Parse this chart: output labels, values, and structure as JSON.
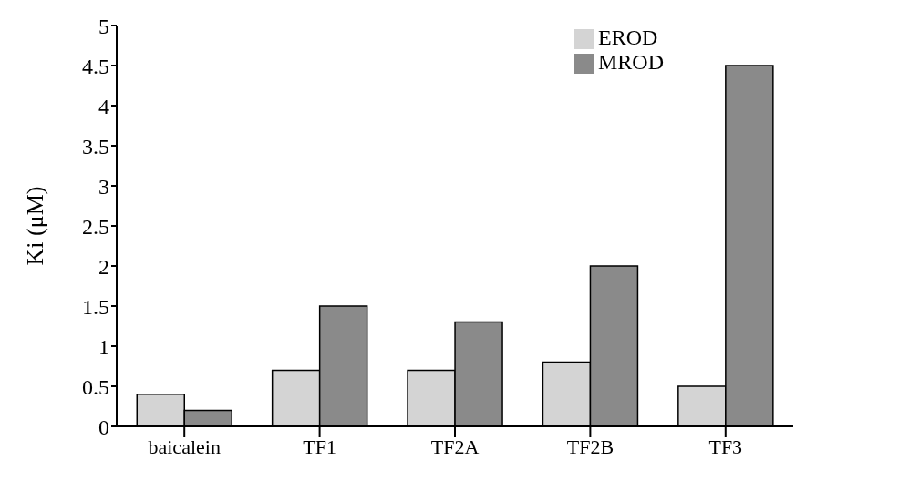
{
  "chart_data": {
    "type": "bar",
    "ylabel": "Ki (μM)",
    "categories": [
      "baicalein",
      "TF1",
      "TF2A",
      "TF2B",
      "TF3"
    ],
    "series": [
      {
        "name": "EROD",
        "color": "#d4d4d4",
        "values": [
          0.4,
          0.7,
          0.7,
          0.8,
          0.5
        ]
      },
      {
        "name": "MROD",
        "color": "#8a8a8a",
        "values": [
          0.2,
          1.5,
          1.3,
          2.0,
          4.5
        ]
      }
    ],
    "ylim": [
      0,
      5
    ],
    "yticks": [
      0,
      0.5,
      1,
      1.5,
      2,
      2.5,
      3,
      3.5,
      4,
      4.5,
      5
    ],
    "grid": false,
    "legend": "top right"
  }
}
